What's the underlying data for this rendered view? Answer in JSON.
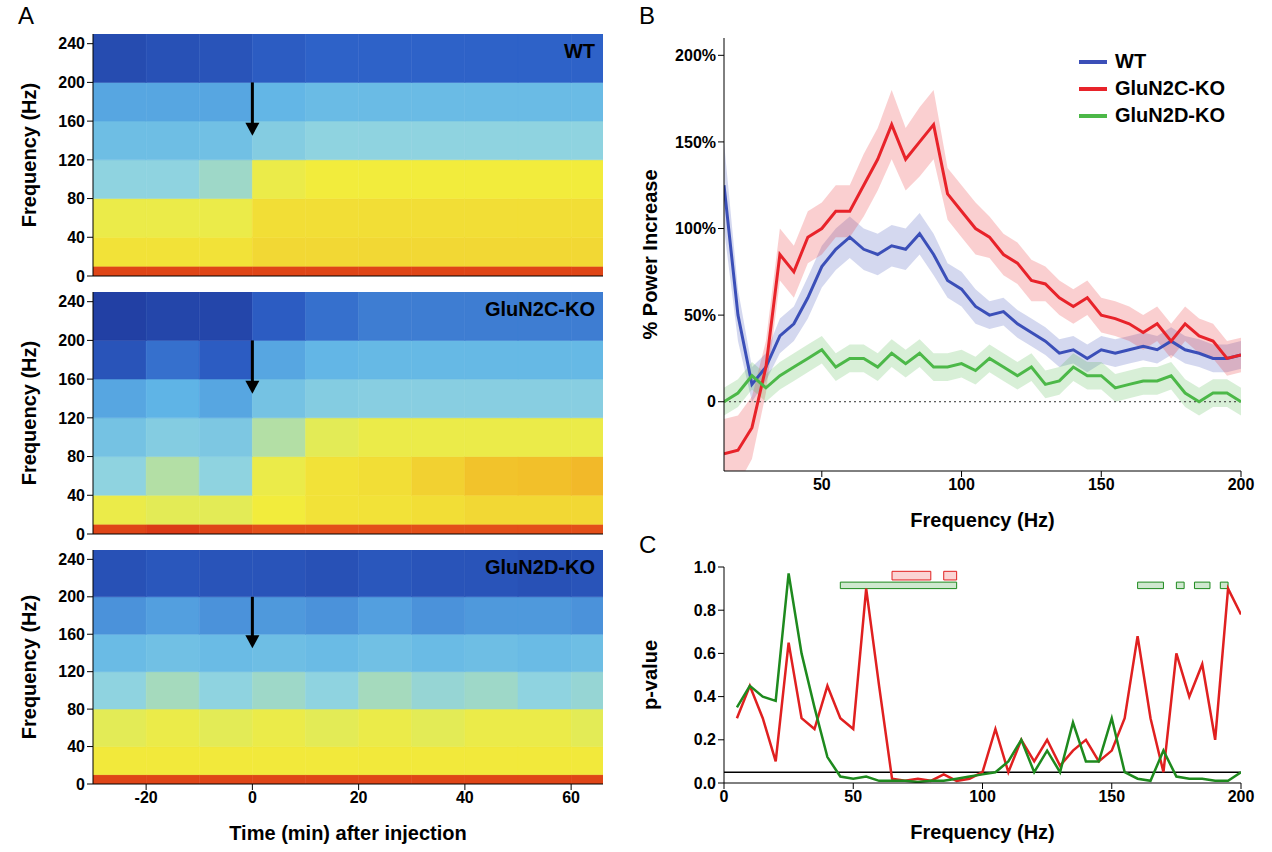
{
  "chart_data": [
    {
      "type": "heatmap",
      "panel_label": "A",
      "title": "WT",
      "y_label": "Frequency (Hz)",
      "xlim": [
        -30,
        66
      ],
      "xticks": [
        -20,
        0,
        20,
        40,
        60
      ],
      "ylim": [
        0,
        250
      ],
      "yticks": [
        0,
        40,
        80,
        120,
        160,
        200,
        240
      ],
      "tick_labels": "y",
      "injection_time": 0,
      "x_bins": [
        -30,
        -20,
        -10,
        0,
        10,
        20,
        30,
        40,
        50,
        60,
        66
      ],
      "y_bins": [
        0,
        10,
        40,
        80,
        120,
        160,
        200,
        250
      ],
      "cells": [
        [
          0.95,
          0.95,
          0.95,
          0.95,
          0.95,
          0.95,
          0.95,
          0.95,
          0.95,
          0.95
        ],
        [
          0.65,
          0.65,
          0.65,
          0.68,
          0.68,
          0.68,
          0.68,
          0.68,
          0.68,
          0.68
        ],
        [
          0.6,
          0.6,
          0.6,
          0.66,
          0.66,
          0.66,
          0.66,
          0.66,
          0.66,
          0.66
        ],
        [
          0.45,
          0.45,
          0.47,
          0.6,
          0.62,
          0.62,
          0.62,
          0.62,
          0.62,
          0.62
        ],
        [
          0.36,
          0.36,
          0.37,
          0.42,
          0.45,
          0.45,
          0.45,
          0.45,
          0.45,
          0.45
        ],
        [
          0.3,
          0.3,
          0.3,
          0.33,
          0.35,
          0.35,
          0.35,
          0.35,
          0.35,
          0.35
        ],
        [
          0.12,
          0.14,
          0.15,
          0.18,
          0.2,
          0.2,
          0.2,
          0.2,
          0.2,
          0.2
        ]
      ]
    },
    {
      "type": "heatmap",
      "title": "GluN2C-KO",
      "y_label": "Frequency (Hz)",
      "xlim": [
        -30,
        66
      ],
      "xticks": [
        -20,
        0,
        20,
        40,
        60
      ],
      "ylim": [
        0,
        250
      ],
      "yticks": [
        0,
        40,
        80,
        120,
        160,
        200,
        240
      ],
      "tick_labels": "y",
      "injection_time": 0,
      "x_bins": [
        -30,
        -20,
        -10,
        0,
        10,
        20,
        30,
        40,
        50,
        60,
        66
      ],
      "y_bins": [
        0,
        10,
        40,
        80,
        120,
        160,
        200,
        250
      ],
      "cells": [
        [
          0.95,
          0.97,
          0.95,
          0.93,
          0.93,
          0.93,
          0.93,
          0.93,
          0.93,
          0.93
        ],
        [
          0.6,
          0.58,
          0.58,
          0.62,
          0.65,
          0.65,
          0.66,
          0.68,
          0.68,
          0.68
        ],
        [
          0.45,
          0.5,
          0.45,
          0.6,
          0.65,
          0.66,
          0.7,
          0.74,
          0.75,
          0.76
        ],
        [
          0.38,
          0.42,
          0.4,
          0.5,
          0.58,
          0.6,
          0.6,
          0.6,
          0.6,
          0.6
        ],
        [
          0.3,
          0.32,
          0.3,
          0.38,
          0.42,
          0.43,
          0.43,
          0.43,
          0.43,
          0.43
        ],
        [
          0.15,
          0.22,
          0.18,
          0.3,
          0.33,
          0.34,
          0.34,
          0.34,
          0.34,
          0.34
        ],
        [
          0.08,
          0.1,
          0.1,
          0.18,
          0.22,
          0.24,
          0.24,
          0.24,
          0.24,
          0.24
        ]
      ]
    },
    {
      "type": "heatmap",
      "title": "GluN2D-KO",
      "x_label": "Time (min) after injection",
      "y_label": "Frequency (Hz)",
      "xlim": [
        -30,
        66
      ],
      "xticks": [
        -20,
        0,
        20,
        40,
        60
      ],
      "ylim": [
        0,
        250
      ],
      "yticks": [
        0,
        40,
        80,
        120,
        160,
        200,
        240
      ],
      "injection_time": 0,
      "x_bins": [
        -30,
        -20,
        -10,
        0,
        10,
        20,
        30,
        40,
        50,
        60,
        66
      ],
      "y_bins": [
        0,
        10,
        40,
        80,
        120,
        160,
        200,
        250
      ],
      "cells": [
        [
          0.95,
          0.95,
          0.95,
          0.95,
          0.95,
          0.95,
          0.95,
          0.95,
          0.95,
          0.95
        ],
        [
          0.63,
          0.63,
          0.63,
          0.63,
          0.63,
          0.63,
          0.63,
          0.63,
          0.63,
          0.63
        ],
        [
          0.58,
          0.6,
          0.58,
          0.6,
          0.58,
          0.6,
          0.58,
          0.6,
          0.6,
          0.58
        ],
        [
          0.45,
          0.48,
          0.45,
          0.47,
          0.45,
          0.48,
          0.46,
          0.47,
          0.45,
          0.46
        ],
        [
          0.35,
          0.37,
          0.35,
          0.36,
          0.35,
          0.37,
          0.35,
          0.36,
          0.35,
          0.36
        ],
        [
          0.27,
          0.29,
          0.27,
          0.28,
          0.27,
          0.29,
          0.27,
          0.28,
          0.28,
          0.27
        ],
        [
          0.14,
          0.16,
          0.15,
          0.15,
          0.14,
          0.16,
          0.15,
          0.15,
          0.14,
          0.15
        ]
      ]
    },
    {
      "type": "line",
      "panel_label": "B",
      "x_label": "Frequency (Hz)",
      "y_label": "% Power Increase",
      "xlim": [
        15,
        200
      ],
      "xticks": [
        50,
        100,
        150,
        200
      ],
      "ylim": [
        -40,
        210
      ],
      "yticks": [
        0,
        {
          "value": 50,
          "label": "50%"
        },
        {
          "value": 100,
          "label": "100%"
        },
        {
          "value": 150,
          "label": "150%"
        },
        {
          "value": 200,
          "label": "200%"
        }
      ],
      "legend": "upper right",
      "hline": 0,
      "x": [
        15,
        20,
        25,
        30,
        35,
        40,
        45,
        50,
        55,
        60,
        65,
        70,
        75,
        80,
        85,
        90,
        95,
        100,
        105,
        110,
        115,
        120,
        125,
        130,
        135,
        140,
        145,
        150,
        155,
        160,
        165,
        170,
        175,
        180,
        185,
        190,
        195,
        200
      ],
      "series": [
        {
          "name": "WT",
          "color": "#3b4fb8",
          "values": [
            125,
            50,
            10,
            20,
            38,
            45,
            60,
            78,
            88,
            95,
            88,
            85,
            90,
            88,
            97,
            85,
            70,
            65,
            55,
            50,
            52,
            45,
            40,
            35,
            28,
            30,
            25,
            30,
            28,
            30,
            32,
            30,
            35,
            30,
            28,
            25,
            25,
            27
          ],
          "sem": [
            25,
            15,
            10,
            8,
            10,
            10,
            12,
            12,
            12,
            12,
            12,
            12,
            12,
            12,
            12,
            12,
            10,
            10,
            10,
            8,
            8,
            8,
            8,
            8,
            8,
            8,
            8,
            8,
            8,
            8,
            8,
            8,
            8,
            8,
            8,
            8,
            8,
            8
          ]
        },
        {
          "name": "GluN2C-KO",
          "color": "#e8232a",
          "values": [
            -30,
            -28,
            -15,
            20,
            85,
            75,
            95,
            100,
            110,
            110,
            125,
            140,
            160,
            140,
            150,
            160,
            120,
            110,
            100,
            95,
            85,
            80,
            70,
            68,
            60,
            55,
            60,
            50,
            48,
            45,
            40,
            45,
            35,
            45,
            38,
            35,
            25,
            27
          ],
          "sem": [
            20,
            20,
            18,
            15,
            15,
            15,
            15,
            15,
            15,
            15,
            18,
            18,
            20,
            18,
            20,
            20,
            15,
            15,
            15,
            12,
            12,
            12,
            12,
            10,
            10,
            10,
            10,
            10,
            10,
            10,
            10,
            10,
            10,
            10,
            10,
            10,
            10,
            10
          ]
        },
        {
          "name": "GluN2D-KO",
          "color": "#4cb848",
          "values": [
            0,
            5,
            15,
            8,
            15,
            20,
            25,
            30,
            20,
            25,
            25,
            20,
            28,
            22,
            28,
            20,
            20,
            22,
            18,
            25,
            20,
            15,
            20,
            10,
            12,
            20,
            15,
            15,
            8,
            10,
            12,
            12,
            15,
            5,
            0,
            5,
            5,
            0
          ],
          "sem": [
            8,
            8,
            8,
            8,
            8,
            8,
            8,
            8,
            8,
            8,
            8,
            8,
            8,
            8,
            8,
            8,
            8,
            8,
            8,
            8,
            8,
            8,
            8,
            8,
            8,
            8,
            8,
            8,
            8,
            8,
            8,
            8,
            8,
            8,
            8,
            8,
            8,
            8
          ]
        }
      ]
    },
    {
      "type": "line",
      "panel_label": "C",
      "x_label": "Frequency (Hz)",
      "y_label": "p-value",
      "xlim": [
        0,
        200
      ],
      "xticks": [
        0,
        50,
        100,
        150,
        200
      ],
      "ylim": [
        0,
        1
      ],
      "yticks": [
        {
          "value": 0,
          "label": "0.0"
        },
        0.2,
        0.4,
        0.6,
        0.8,
        {
          "value": 1,
          "label": "1.0"
        }
      ],
      "hline": 0.05,
      "x": [
        5,
        10,
        15,
        20,
        25,
        30,
        35,
        40,
        45,
        50,
        55,
        60,
        65,
        70,
        75,
        80,
        85,
        90,
        95,
        100,
        105,
        110,
        115,
        120,
        125,
        130,
        135,
        140,
        145,
        150,
        155,
        160,
        165,
        170,
        175,
        180,
        185,
        190,
        195,
        200
      ],
      "series": [
        {
          "color": "#e02020",
          "values": [
            0.3,
            0.45,
            0.3,
            0.1,
            0.65,
            0.3,
            0.25,
            0.45,
            0.3,
            0.25,
            0.9,
            0.45,
            0.02,
            0.01,
            0.02,
            0.01,
            0.04,
            0.01,
            0.02,
            0.05,
            0.25,
            0.05,
            0.2,
            0.1,
            0.2,
            0.08,
            0.15,
            0.2,
            0.1,
            0.15,
            0.3,
            0.68,
            0.3,
            0.05,
            0.6,
            0.4,
            0.55,
            0.2,
            0.9,
            0.78
          ],
          "significant_ranges": [
            [
              65,
              80
            ],
            [
              85,
              90
            ]
          ]
        },
        {
          "color": "#1e8a1e",
          "values": [
            0.35,
            0.45,
            0.4,
            0.38,
            0.97,
            0.6,
            0.35,
            0.12,
            0.03,
            0.02,
            0.03,
            0.01,
            0.01,
            0.01,
            0.005,
            0.01,
            0.01,
            0.02,
            0.03,
            0.04,
            0.05,
            0.1,
            0.2,
            0.05,
            0.15,
            0.05,
            0.28,
            0.1,
            0.1,
            0.3,
            0.05,
            0.02,
            0.01,
            0.15,
            0.03,
            0.02,
            0.02,
            0.01,
            0.01,
            0.05
          ],
          "significant_ranges": [
            [
              45,
              90
            ],
            [
              160,
              170
            ],
            [
              175,
              178
            ],
            [
              182,
              188
            ],
            [
              192,
              195
            ]
          ]
        }
      ]
    }
  ]
}
